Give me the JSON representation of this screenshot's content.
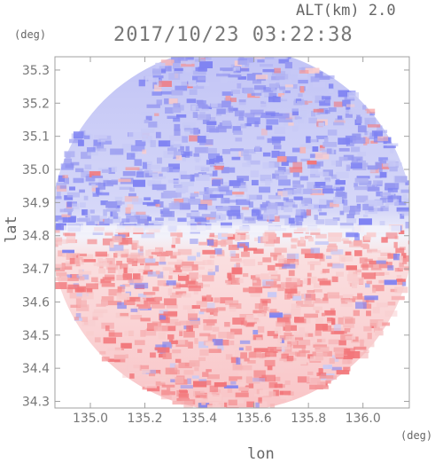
{
  "header": {
    "altitude_label": "ALT(km) 2.0",
    "timestamp": "2017/10/23 03:22:38",
    "unit_top_left": "(deg)",
    "unit_bottom_right": "(deg)"
  },
  "axes": {
    "ylabel": "lat",
    "xlabel": "lon",
    "x_ticks": [
      "135.0",
      "135.2",
      "135.4",
      "135.6",
      "135.8",
      "136.0"
    ],
    "y_ticks": [
      "35.3",
      "35.2",
      "35.1",
      "35.0",
      "34.9",
      "34.8",
      "34.7",
      "34.6",
      "34.5",
      "34.4",
      "34.3"
    ]
  },
  "map": {
    "x_range_deg": [
      134.87,
      136.17
    ],
    "y_range_deg": [
      34.28,
      35.34
    ],
    "radar_center_deg": [
      135.52,
      34.82
    ],
    "colors": {
      "approaching": "#7f83f2",
      "receding": "#f2767a",
      "frame": "#a0a0a0",
      "grid": "#d6d6d6"
    }
  }
}
